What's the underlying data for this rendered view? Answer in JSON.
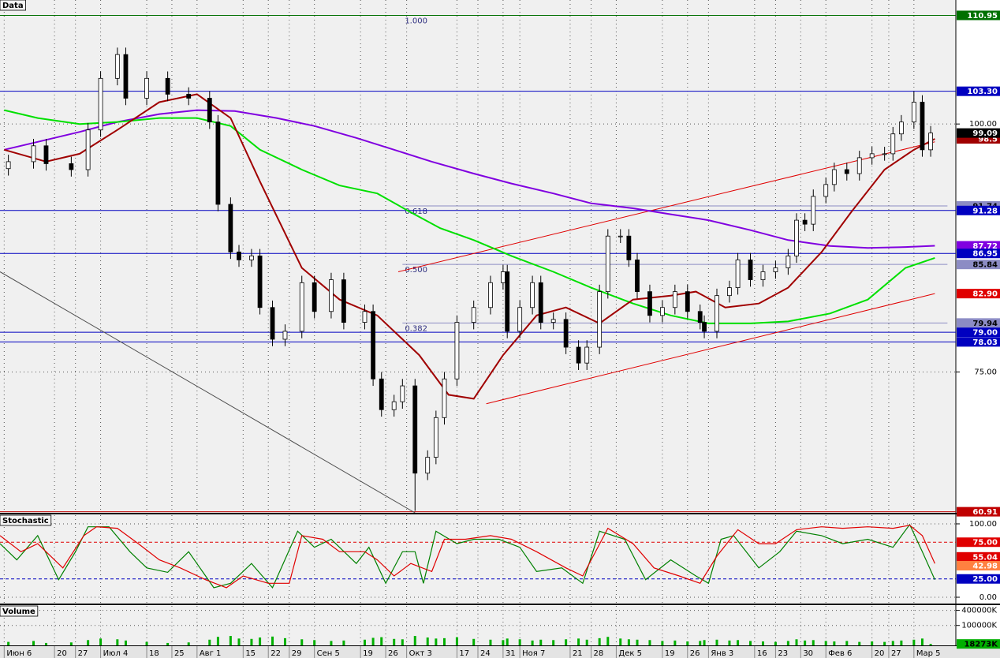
{
  "chart_data": [
    {
      "type": "candlestick",
      "title": "Data",
      "x": [
        1,
        7,
        10,
        16,
        20,
        23,
        27,
        29,
        34,
        39,
        44,
        49,
        51,
        54,
        56,
        59,
        61,
        64,
        67,
        71,
        74,
        78,
        81,
        86,
        88,
        90,
        93,
        95,
        98,
        101,
        103,
        105,
        108,
        112,
        116,
        119,
        120,
        123,
        126,
        128,
        131,
        134,
        137,
        139,
        142,
        144,
        147,
        149,
        151,
        154,
        157,
        160,
        163,
        166,
        167,
        170,
        173,
        175,
        178,
        181,
        184,
        187,
        189,
        191,
        193,
        196,
        198,
        201,
        204,
        207,
        210,
        212,
        214,
        217,
        219,
        221
      ],
      "open": [
        95.5,
        96.2,
        97.8,
        96,
        95.4,
        99.4,
        104.6,
        107,
        102.6,
        104.6,
        103,
        102.6,
        100.2,
        91.9,
        87.1,
        86.3,
        86.7,
        81.5,
        78.3,
        79.1,
        84,
        81.1,
        84.3,
        80,
        81.1,
        74.3,
        71.2,
        72,
        73.6,
        64.8,
        66.4,
        70.4,
        74.3,
        80,
        81.5,
        84,
        85.1,
        79.1,
        81.5,
        84,
        80,
        80.3,
        77.5,
        75.9,
        77.5,
        83.1,
        88.7,
        88.7,
        86.3,
        83.1,
        80.7,
        81.5,
        83.1,
        81.1,
        80,
        79.1,
        82.7,
        83.5,
        86.3,
        84.3,
        85.1,
        85.5,
        86.7,
        90.3,
        89.9,
        92.7,
        93.9,
        95.4,
        95,
        96.6,
        97,
        97,
        99,
        100.2,
        102.2,
        97.4
      ],
      "high": [
        96.9,
        98.5,
        98.5,
        96.7,
        100.1,
        105.3,
        107.7,
        107.7,
        105.3,
        105.3,
        103.7,
        103.3,
        100.9,
        92.6,
        87.8,
        87.4,
        87.4,
        82.2,
        79.8,
        84.7,
        84.7,
        85,
        85,
        81.8,
        81.8,
        75,
        72.7,
        74.3,
        74.3,
        67.1,
        71.1,
        75,
        80.7,
        82.2,
        84.7,
        85.8,
        85.8,
        82.2,
        84.7,
        84.7,
        81,
        81,
        78.2,
        78.2,
        83.8,
        89.4,
        89.4,
        89.4,
        87,
        83.8,
        82.2,
        83.8,
        83.8,
        81.8,
        80.7,
        83.4,
        84.2,
        87,
        87,
        85.8,
        86.2,
        87.4,
        91,
        91,
        93.4,
        94.6,
        96.1,
        96.1,
        97.3,
        97.7,
        97.7,
        99.7,
        100.9,
        103.3,
        102.9,
        99.8
      ],
      "low": [
        94.8,
        95.5,
        95.3,
        94.7,
        94.7,
        98.7,
        103.9,
        101.9,
        101.9,
        102.3,
        101.9,
        99.5,
        91.2,
        86.4,
        85.6,
        85.6,
        80.8,
        77.6,
        77.6,
        78.4,
        80.4,
        80.4,
        79.3,
        79.3,
        73.6,
        70.5,
        70.5,
        71.3,
        61,
        64.1,
        65.7,
        69.7,
        73.6,
        79.3,
        80.8,
        83.3,
        78.4,
        78.4,
        80.8,
        79.3,
        79.3,
        76.8,
        75.2,
        75.2,
        76.8,
        82.4,
        88,
        85.6,
        82.4,
        80,
        80,
        80.8,
        80.4,
        79.3,
        78.4,
        78.4,
        82,
        82.8,
        83.6,
        83.6,
        84.4,
        84.8,
        86,
        89.2,
        89.2,
        92,
        93.2,
        94.3,
        94.3,
        95.9,
        96.3,
        96.3,
        98.3,
        99.5,
        96.7,
        96.7
      ],
      "close": [
        96.2,
        97.8,
        96,
        95.4,
        99.4,
        104.6,
        107,
        102.6,
        104.6,
        103,
        102.6,
        100.2,
        91.9,
        87.1,
        86.3,
        86.7,
        81.5,
        78.3,
        79.1,
        84,
        81.1,
        84.3,
        80,
        81.1,
        74.3,
        71.2,
        72,
        73.6,
        64.8,
        66.4,
        70.4,
        74.3,
        80,
        81.5,
        84,
        85.1,
        79.1,
        81.5,
        84,
        80,
        80.3,
        77.5,
        75.9,
        77.5,
        83.1,
        88.7,
        88.7,
        86.3,
        83.1,
        80.7,
        81.5,
        83.1,
        81.1,
        80,
        79.1,
        82.7,
        83.5,
        86.3,
        84.3,
        85.1,
        85.5,
        86.7,
        90.3,
        89.9,
        92.7,
        93.9,
        95.4,
        95,
        96.6,
        97,
        97,
        99,
        100.2,
        102.2,
        97.4,
        99.09
      ],
      "up_color": "#ffffff",
      "down_color": "#000000",
      "last_close_color": "#000000",
      "xlim": [
        -1,
        227
      ],
      "ylim": [
        60.8,
        112.5
      ],
      "xticks": [
        {
          "value": 0,
          "label": "Июн 6"
        },
        {
          "value": 12,
          "label": "20"
        },
        {
          "value": 17,
          "label": "27"
        },
        {
          "value": 23,
          "label": "Июл 4"
        },
        {
          "value": 34,
          "label": "18"
        },
        {
          "value": 40,
          "label": "25"
        },
        {
          "value": 46,
          "label": "Авг 1"
        },
        {
          "value": 57,
          "label": "15"
        },
        {
          "value": 63,
          "label": "22"
        },
        {
          "value": 68,
          "label": "29"
        },
        {
          "value": 74,
          "label": "Сен 5"
        },
        {
          "value": 85,
          "label": "19"
        },
        {
          "value": 91,
          "label": "26"
        },
        {
          "value": 96,
          "label": "Окт 3"
        },
        {
          "value": 108,
          "label": "17"
        },
        {
          "value": 113,
          "label": "24"
        },
        {
          "value": 119,
          "label": "31"
        },
        {
          "value": 123,
          "label": "Ноя 7"
        },
        {
          "value": 135,
          "label": "21"
        },
        {
          "value": 140,
          "label": "28"
        },
        {
          "value": 146,
          "label": "Дек 5"
        },
        {
          "value": 157,
          "label": "19"
        },
        {
          "value": 163,
          "label": "26"
        },
        {
          "value": 168,
          "label": "Янв 3"
        },
        {
          "value": 179,
          "label": "16"
        },
        {
          "value": 184,
          "label": "23"
        },
        {
          "value": 190,
          "label": "30"
        },
        {
          "value": 196,
          "label": "Фев 6"
        },
        {
          "value": 207,
          "label": "20"
        },
        {
          "value": 211,
          "label": "27"
        },
        {
          "value": 217,
          "label": "Мар 5"
        }
      ],
      "yticks": [
        {
          "value": 100,
          "label": "100.00"
        },
        {
          "value": 75,
          "label": "75.00"
        }
      ],
      "grid": true,
      "moving_averages": [
        {
          "color": "#8000e0",
          "label_last": true,
          "x": [
            0,
            8,
            18,
            27,
            37,
            46,
            55,
            65,
            74,
            84,
            93,
            102,
            112,
            121,
            131,
            140,
            150,
            159,
            168,
            178,
            187,
            197,
            206,
            215,
            222
          ],
          "values": [
            97.4,
            98.2,
            99.2,
            100.2,
            101,
            101.4,
            101.3,
            100.6,
            99.8,
            98.6,
            97.4,
            96.2,
            95,
            94,
            93,
            92,
            91.5,
            90.9,
            90.3,
            89.3,
            88.3,
            87.7,
            87.5,
            87.6,
            87.72
          ]
        },
        {
          "color": "#00e000",
          "label_last": false,
          "x": [
            0,
            8,
            18,
            27,
            37,
            46,
            54,
            61,
            71,
            80,
            89,
            97,
            104,
            112,
            121,
            131,
            140,
            150,
            159,
            168,
            178,
            187,
            197,
            206,
            215,
            222
          ],
          "values": [
            101.4,
            100.6,
            100,
            100.2,
            100.6,
            100.6,
            99.8,
            97.4,
            95.4,
            93.8,
            93,
            91.1,
            89.5,
            88.3,
            86.7,
            85.1,
            83.5,
            81.9,
            80.7,
            79.9,
            79.9,
            80.1,
            80.9,
            82.3,
            85.5,
            86.5
          ]
        },
        {
          "color": "#a00000",
          "label_last": true,
          "x": [
            0,
            10,
            18,
            27,
            37,
            46,
            54,
            61,
            71,
            80,
            89,
            99,
            106,
            112,
            119,
            127,
            134,
            142,
            150,
            159,
            165,
            172,
            180,
            187,
            195,
            202,
            210,
            217,
            222
          ],
          "values": [
            97.4,
            96.2,
            97,
            99.4,
            102.2,
            103,
            100.6,
            94.2,
            85.5,
            82.3,
            80.7,
            76.7,
            72.7,
            72.3,
            76.7,
            80.7,
            81.5,
            79.9,
            82.3,
            82.7,
            83.1,
            81.5,
            81.9,
            83.5,
            87.1,
            91.1,
            95.4,
            97.4,
            98.5
          ]
        }
      ],
      "fibonacci": {
        "color": "#8c8cc4",
        "x": [
          95,
          225
        ],
        "levels": [
          {
            "ratio": "1.000",
            "value": 110.95
          },
          {
            "ratio": "0.618",
            "value": 91.74
          },
          {
            "ratio": "0.500",
            "value": 85.84
          },
          {
            "ratio": "0.382",
            "value": 79.94
          }
        ]
      },
      "levels": [
        {
          "value": 110.95,
          "label": "110.95",
          "color": "#007000"
        },
        {
          "value": 103.3,
          "label": "103.30",
          "color": "#0000c0"
        },
        {
          "value": 91.28,
          "label": "91.28",
          "color": "#0000c0"
        },
        {
          "value": 86.95,
          "label": "86.95",
          "color": "#0000c0"
        },
        {
          "value": 79,
          "label": "79.00",
          "color": "#0000c0"
        },
        {
          "value": 78.03,
          "label": "78.03",
          "color": "#0000c0"
        },
        {
          "value": 60.91,
          "label": "60.91",
          "color": "#c00000"
        }
      ],
      "trendlines": [
        {
          "x": [
            94,
            222
          ],
          "y": [
            85.1,
            98.2
          ],
          "color": "#e00000"
        },
        {
          "x": [
            115,
            222
          ],
          "y": [
            71.8,
            82.9
          ],
          "color": "#e00000",
          "label": "82.90"
        },
        {
          "x": [
            -1,
            98
          ],
          "y": [
            85.1,
            60.8
          ],
          "color": "#505050"
        }
      ]
    },
    {
      "type": "line",
      "title": "Stochastic",
      "series": [
        {
          "color": "#008000",
          "x": [
            -1,
            3,
            8,
            13,
            17,
            20,
            25,
            30,
            34,
            39,
            44,
            50,
            54,
            59,
            64,
            70,
            74,
            78,
            84,
            87,
            91,
            95,
            98,
            100,
            103,
            108,
            112,
            118,
            123,
            127,
            133,
            138,
            142,
            148,
            153,
            159,
            165,
            168,
            171,
            174,
            180,
            185,
            189,
            195,
            200,
            206,
            212,
            216,
            219,
            222
          ],
          "values": [
            73,
            51,
            84,
            24,
            62,
            96,
            96,
            62,
            40,
            34,
            62,
            13,
            19,
            46,
            13,
            90,
            68,
            79,
            46,
            68,
            19,
            62,
            62,
            19,
            90,
            73,
            79,
            79,
            68,
            35,
            40,
            19,
            90,
            79,
            24,
            51,
            29,
            19,
            79,
            84,
            40,
            62,
            90,
            84,
            73,
            79,
            68,
            99,
            62,
            24
          ]
        },
        {
          "color": "#e00000",
          "x": [
            -1,
            4,
            8,
            14,
            19,
            22,
            27,
            32,
            37,
            42,
            48,
            53,
            57,
            63,
            68,
            71,
            76,
            80,
            86,
            89,
            93,
            97,
            102,
            105,
            110,
            116,
            121,
            127,
            134,
            138,
            144,
            150,
            155,
            161,
            166,
            170,
            175,
            180,
            184,
            189,
            195,
            200,
            206,
            212,
            216,
            219,
            222
          ],
          "values": [
            84,
            62,
            73,
            40,
            84,
            96,
            94,
            73,
            51,
            40,
            24,
            13,
            29,
            19,
            19,
            84,
            79,
            62,
            62,
            51,
            29,
            46,
            35,
            79,
            79,
            84,
            79,
            62,
            40,
            29,
            94,
            73,
            40,
            29,
            19,
            56,
            92,
            73,
            73,
            92,
            96,
            94,
            96,
            94,
            98,
            84,
            46
          ]
        }
      ],
      "ylim": [
        -8.6,
        111.8
      ],
      "yticks": [
        {
          "value": 100,
          "label": "100.00"
        },
        {
          "value": 0,
          "label": "0.00"
        }
      ],
      "levels": [
        {
          "value": 75,
          "label": "75.00",
          "color": "#e00000"
        },
        {
          "value": 25,
          "label": "25.00",
          "color": "#0000c0"
        }
      ],
      "line_style": "dashed",
      "last_values": [
        {
          "value": 55.04,
          "color": "#e00000"
        },
        {
          "value": 42.98,
          "color": "#ff8040"
        }
      ]
    },
    {
      "type": "bar",
      "title": "Volume",
      "color": "#00b000",
      "log_scale": true,
      "values": [
        22000,
        24000,
        20000,
        21000,
        26000,
        30000,
        28000,
        25000,
        22000,
        20000,
        21000,
        27000,
        35000,
        38000,
        30000,
        29000,
        33000,
        36000,
        31000,
        28000,
        26000,
        24000,
        25000,
        27000,
        32000,
        34000,
        29000,
        28000,
        38000,
        33000,
        30000,
        31000,
        34000,
        29000,
        27000,
        26000,
        30000,
        28000,
        25000,
        27000,
        26000,
        28000,
        30000,
        27000,
        31000,
        35000,
        30000,
        28000,
        27000,
        26000,
        24000,
        25000,
        23000,
        24000,
        26000,
        27000,
        25000,
        26000,
        24000,
        23000,
        22000,
        24000,
        28000,
        25000,
        26000,
        24000,
        23000,
        24000,
        22000,
        23000,
        22000,
        24000,
        25000,
        27000,
        30000,
        18273
      ],
      "ylim": [
        16000,
        600000
      ],
      "yticks": [
        {
          "value": 400000,
          "label": "400000K"
        },
        {
          "value": 100000,
          "label": "100000K"
        }
      ],
      "last_label": {
        "value": 18273,
        "label": "18273K"
      }
    }
  ]
}
